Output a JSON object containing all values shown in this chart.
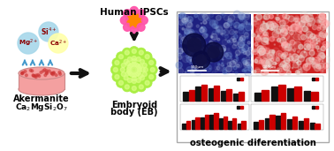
{
  "background_color": "#ffffff",
  "frame_color": "#aaaaaa",
  "title_text": "osteogenic diferentiation",
  "title_fontsize": 7.5,
  "title_color": "#000000",
  "akermanite_label": "Akermanite",
  "formula_label": "Ca₂MgSi₂O₇",
  "eb_label1": "Embryoid",
  "eb_label2": "body (EB)",
  "ipsc_label": "Human iPSCs",
  "scale1": "500μm",
  "scale2": "200μm",
  "bar_charts": [
    {
      "vb": [
        0.55,
        0.9,
        0.8,
        0.6,
        0.45
      ],
      "vr": [
        0.7,
        1.0,
        0.95,
        0.75,
        0.55
      ]
    },
    {
      "vb": [
        0.5,
        0.85,
        0.75,
        0.6
      ],
      "vr": [
        0.65,
        0.95,
        0.85,
        0.55
      ]
    },
    {
      "vb": [
        0.3,
        0.55,
        0.75,
        0.9,
        0.65,
        0.5,
        0.35
      ],
      "vr": [
        0.5,
        0.75,
        0.9,
        1.0,
        0.8,
        0.7,
        0.5
      ]
    },
    {
      "vb": [
        0.4,
        0.65,
        0.8,
        0.6,
        0.5,
        0.35
      ],
      "vr": [
        0.55,
        0.85,
        0.95,
        0.75,
        0.65,
        0.3
      ]
    }
  ],
  "ion_si_bg": "#a8d8ea",
  "ion_mg_bg": "#a8d8ea",
  "ion_ca_bg": "#ffffaa",
  "ion_text_color": "#8B0000",
  "arrow_color": "#111111",
  "arrow_blue": "#4499cc",
  "dish_fill": "#f4a0a0",
  "dish_edge": "#cc8888",
  "dish_dot": "#cc3333",
  "eb_green": "#aaee44",
  "eb_edge": "#559922",
  "eb_inner": "#ddff88",
  "ipsc_pink": "#ff55aa",
  "ipsc_orange": "#ff8800",
  "photo1_base": "#1e2080",
  "photo1_dark": "#0a0a40",
  "photo2_base": "#cc2020",
  "photo2_light": "#e8d8d0"
}
